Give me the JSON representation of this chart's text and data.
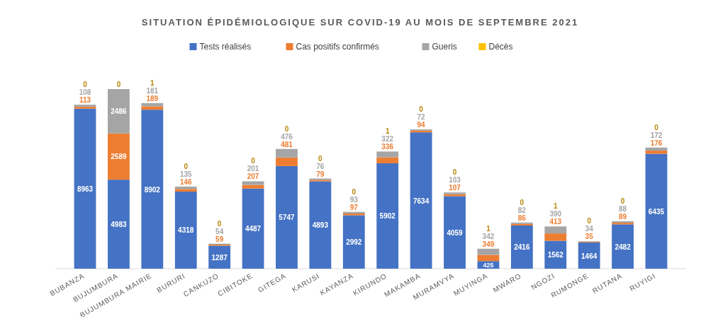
{
  "chart_data": {
    "type": "bar",
    "title": "SITUATION ÉPIDÉMIOLOGIQUE SUR COVID-19 AU MOIS DE SEPTEMBRE 2021",
    "stacked": true,
    "data_labels": true,
    "legend": "top",
    "categories": [
      "BUBANZA",
      "BUJUMBURA",
      "BUJUMBURA MAIRIE",
      "BURURI",
      "CANKUZO",
      "CIBITOKE",
      "GITEGA",
      "KARUSI",
      "KAYANZA",
      "KIRUNDO",
      "MAKAMBA",
      "MURAMVYA",
      "MUYINGA",
      "MWARO",
      "NGOZI",
      "RUMONGE",
      "RUTANA",
      "RUYIGI"
    ],
    "series": [
      {
        "name": "Tests réalisés",
        "color": "#4472c4",
        "values": [
          8963,
          4983,
          8902,
          4318,
          1287,
          4487,
          5747,
          4893,
          2992,
          5902,
          7634,
          4059,
          425,
          2416,
          1562,
          1464,
          2482,
          6435
        ]
      },
      {
        "name": "Cas positifs confirmés",
        "color": "#ed7d31",
        "values": [
          113,
          2589,
          189,
          146,
          59,
          207,
          481,
          79,
          97,
          336,
          94,
          107,
          349,
          86,
          413,
          35,
          89,
          176
        ]
      },
      {
        "name": "Gueris",
        "color": "#a5a5a5",
        "values": [
          108,
          2486,
          181,
          135,
          54,
          201,
          476,
          76,
          93,
          322,
          72,
          103,
          342,
          82,
          390,
          34,
          88,
          172
        ]
      },
      {
        "name": "Décès",
        "color": "#ffc000",
        "values": [
          0,
          0,
          1,
          0,
          0,
          0,
          0,
          0,
          0,
          1,
          0,
          0,
          1,
          0,
          1,
          0,
          0,
          0
        ]
      }
    ]
  }
}
